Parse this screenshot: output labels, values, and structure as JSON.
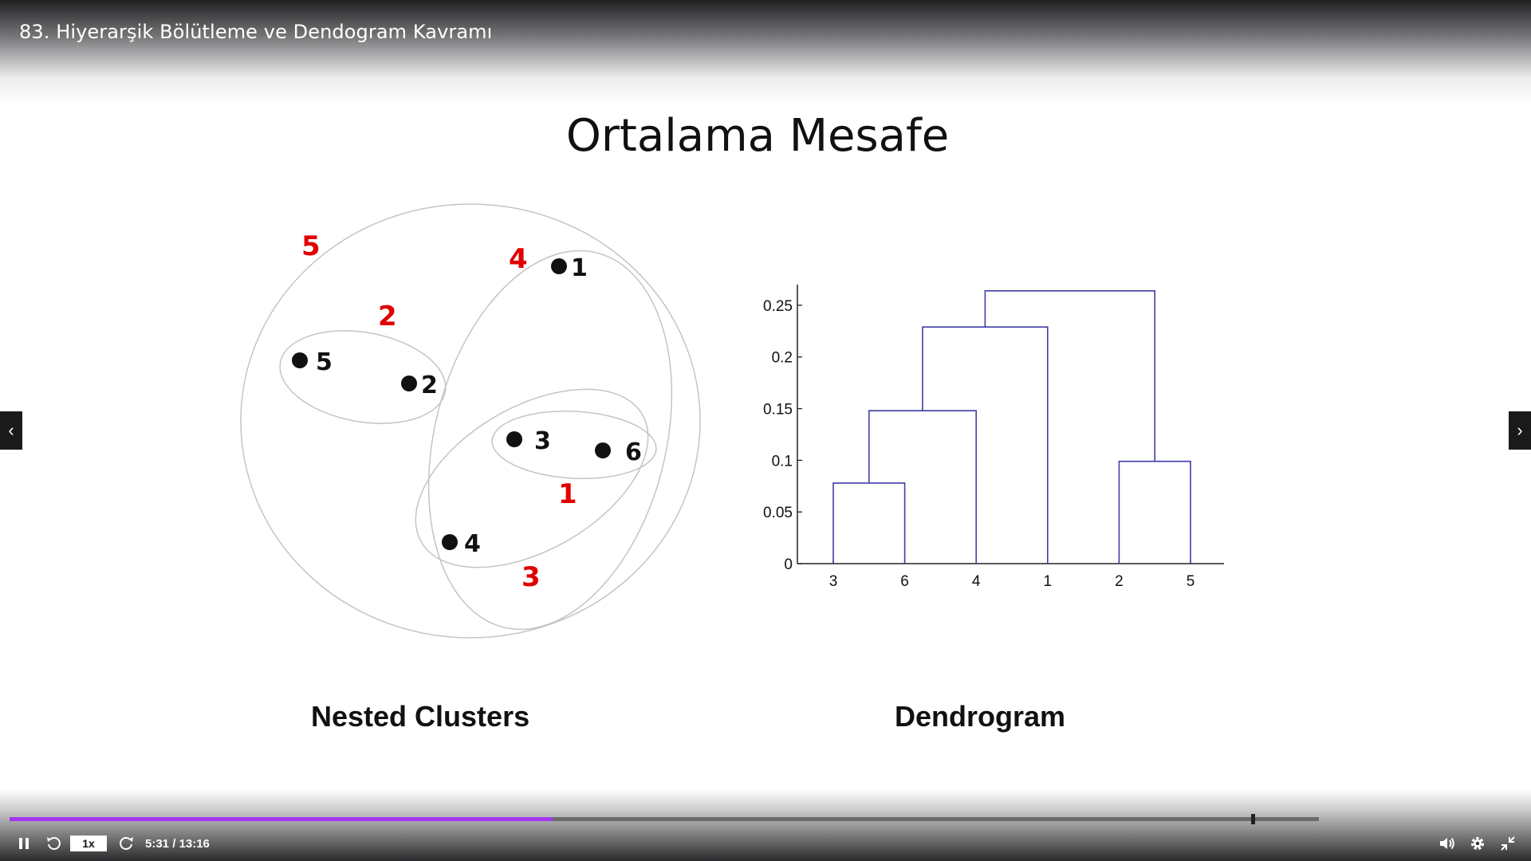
{
  "video": {
    "title": "83. Hiyerarşik Bölütleme ve Dendogram Kavramı"
  },
  "slide": {
    "title": "Ortalama Mesafe",
    "left_caption": "Nested Clusters",
    "right_caption": "Dendrogram"
  },
  "nested_clusters": {
    "points": [
      "1",
      "2",
      "3",
      "4",
      "5",
      "6"
    ],
    "cluster_labels": [
      "1",
      "2",
      "3",
      "4",
      "5"
    ]
  },
  "chart_data": {
    "type": "dendrogram",
    "leaf_order": [
      "3",
      "6",
      "4",
      "1",
      "2",
      "5"
    ],
    "y_ticks": [
      "0",
      "0.05",
      "0.1",
      "0.15",
      "0.2",
      "0.25"
    ],
    "ylim": [
      0,
      0.27
    ],
    "merges": [
      {
        "left": "3",
        "right": "6",
        "height": 0.078
      },
      {
        "left": "2",
        "right": "5",
        "height": 0.099
      },
      {
        "left": "3,6",
        "right": "4",
        "height": 0.148
      },
      {
        "left": "3,6,4",
        "right": "1",
        "height": 0.229
      },
      {
        "left": "3,6,4,1",
        "right": "2,5",
        "height": 0.264
      }
    ],
    "line_color": "#3f3fa8"
  },
  "player": {
    "speed": "1x",
    "time": "5:31 / 13:16",
    "progress": 0.415,
    "progress_color": "#a435f0"
  }
}
